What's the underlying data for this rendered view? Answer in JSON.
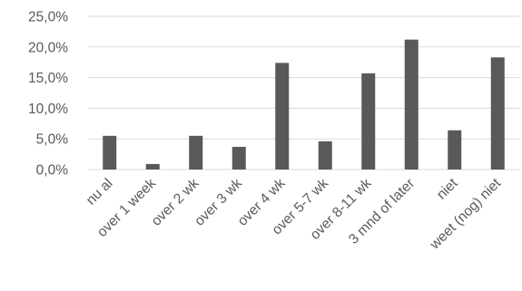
{
  "chart_data": {
    "type": "bar",
    "categories": [
      "nu al",
      "over 1 week",
      "over 2 wk",
      "over 3 wk",
      "over 4 wk",
      "over 5-7 wk",
      "over 8-11 wk",
      "3 mnd of later",
      "niet",
      "weet (nog) niet"
    ],
    "values": [
      5.5,
      0.9,
      5.5,
      3.7,
      17.4,
      4.6,
      15.7,
      21.2,
      6.4,
      18.3
    ],
    "yticks": [
      "0,0%",
      "5,0%",
      "10,0%",
      "15,0%",
      "20,0%",
      "25,0%"
    ],
    "ylim": [
      0,
      25
    ],
    "grid": true,
    "bar_color": "#595959",
    "title": "",
    "xlabel": "",
    "ylabel": ""
  }
}
